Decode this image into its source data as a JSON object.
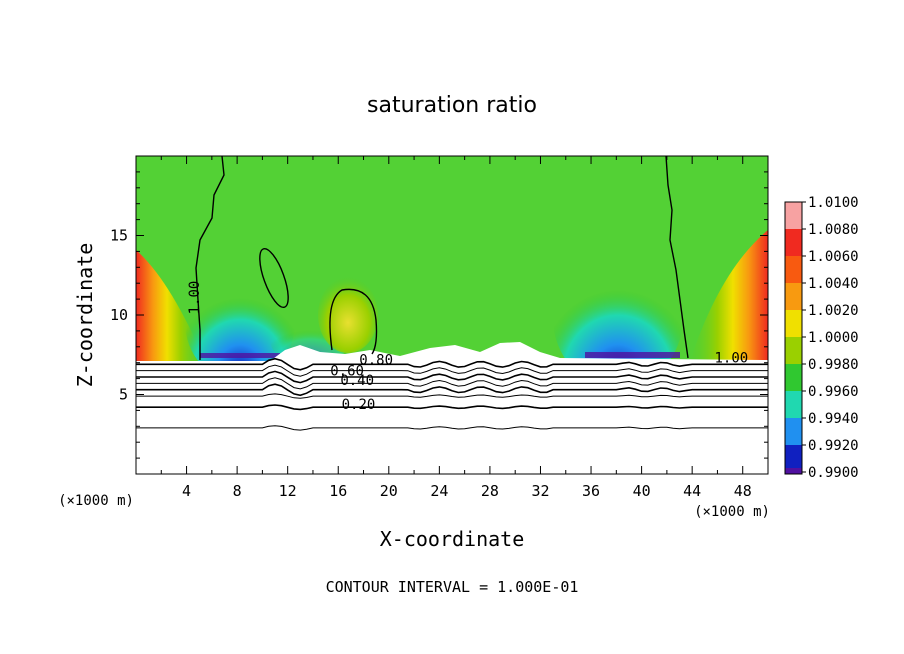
{
  "chart_data": {
    "type": "heatmap",
    "title": "saturation ratio",
    "xlabel": "X-coordinate",
    "ylabel": "Z-coordinate",
    "x_unit_left": "(×1000 m)",
    "x_unit_right": "(×1000 m)",
    "footer": "CONTOUR INTERVAL = 1.000E-01",
    "xlim": [
      0,
      50
    ],
    "ylim": [
      0,
      20
    ],
    "xticks": [
      4,
      8,
      12,
      16,
      20,
      24,
      28,
      32,
      36,
      40,
      44,
      48
    ],
    "xtick_labels": [
      "4",
      "8",
      "12",
      "16",
      "20",
      "24",
      "28",
      "32",
      "36",
      "40",
      "44",
      "48"
    ],
    "yticks": [
      5,
      10,
      15
    ],
    "ytick_labels": [
      "5",
      "10",
      "15"
    ],
    "colorbar": {
      "levels": [
        "1.0100",
        "1.0080",
        "1.0060",
        "1.0040",
        "1.0020",
        "1.0000",
        "0.9980",
        "0.9960",
        "0.9940",
        "0.9920",
        "0.9900"
      ],
      "colors": [
        "#f7a2a2",
        "#f02a20",
        "#f85a10",
        "#f89a10",
        "#f0e000",
        "#9ad000",
        "#30c830",
        "#20d8b0",
        "#2090f0",
        "#1020c0",
        "#5010a0"
      ]
    },
    "contour_labels": [
      {
        "text": "1.00",
        "x": 5.0,
        "y": 11.1
      },
      {
        "text": "1.00",
        "x": 47.1,
        "y": 7.0
      },
      {
        "text": "0.80",
        "x": 19.0,
        "y": 6.9
      },
      {
        "text": "0.60",
        "x": 16.7,
        "y": 6.2
      },
      {
        "text": "0.40",
        "x": 17.5,
        "y": 5.6
      },
      {
        "text": "0.20",
        "x": 17.6,
        "y": 4.1
      }
    ],
    "contour_lines_z": [
      6.9,
      6.5,
      6.1,
      5.7,
      5.3,
      4.9,
      4.2,
      2.9
    ]
  }
}
